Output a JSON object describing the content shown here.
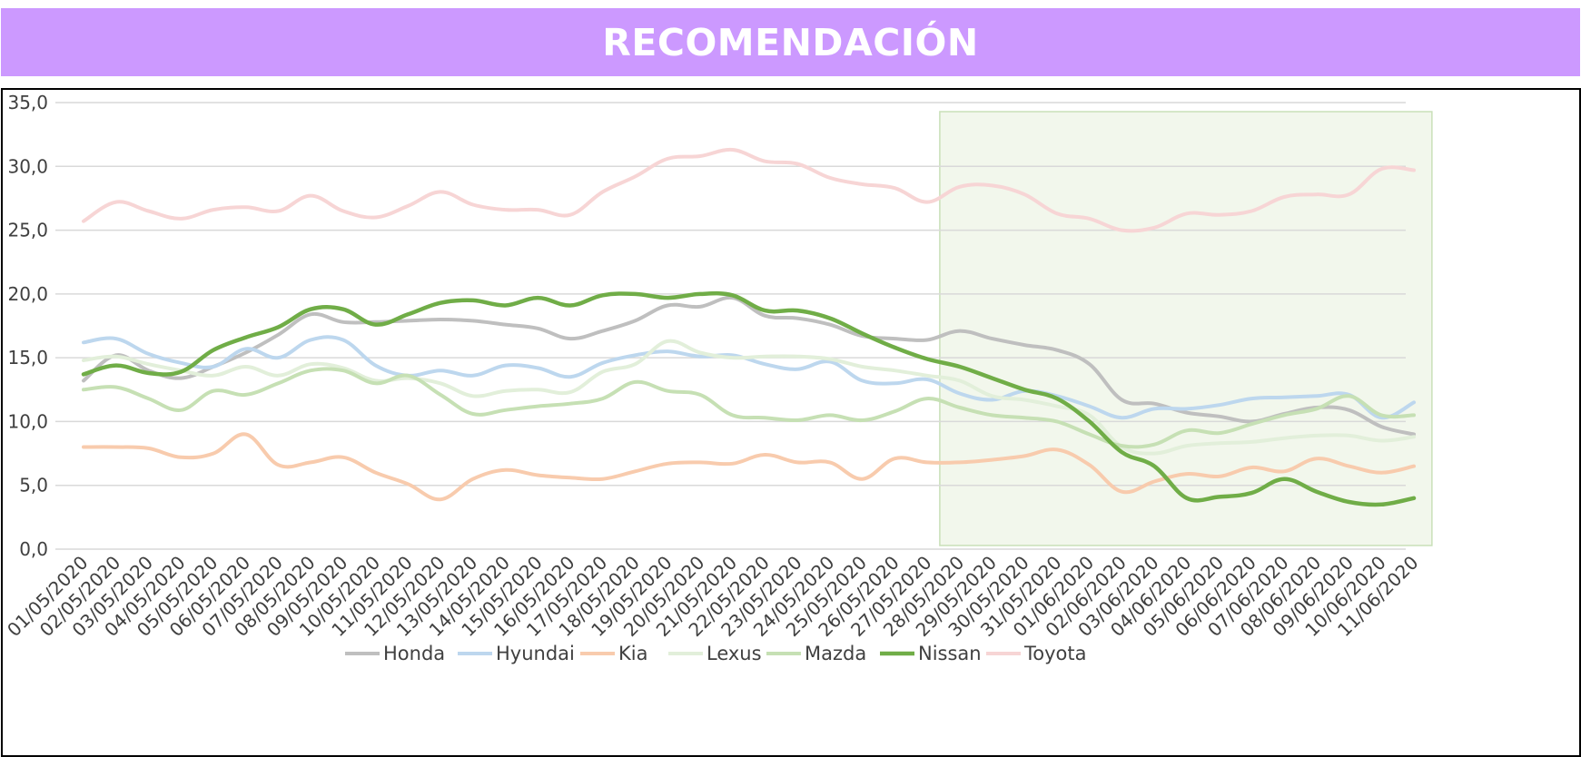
{
  "header": {
    "title": "RECOMENDACIÓN",
    "background_color": "#cc99ff"
  },
  "chart_data": {
    "type": "line",
    "title": "RECOMENDACIÓN",
    "xlabel": "",
    "ylabel": "",
    "ylim": [
      0,
      35
    ],
    "yticks": [
      "0,0",
      "5,0",
      "10,0",
      "15,0",
      "20,0",
      "25,0",
      "30,0",
      "35,0"
    ],
    "grid": true,
    "legend_position": "bottom",
    "highlight": {
      "from": "28/05/2020",
      "to": "11/06/2020",
      "color": "#f2f7ec",
      "border": "#c9e0b8"
    },
    "categories": [
      "01/05/2020",
      "02/05/2020",
      "03/05/2020",
      "04/05/2020",
      "05/05/2020",
      "06/05/2020",
      "07/05/2020",
      "08/05/2020",
      "09/05/2020",
      "10/05/2020",
      "11/05/2020",
      "12/05/2020",
      "13/05/2020",
      "14/05/2020",
      "15/05/2020",
      "16/05/2020",
      "17/05/2020",
      "18/05/2020",
      "19/05/2020",
      "20/05/2020",
      "21/05/2020",
      "22/05/2020",
      "23/05/2020",
      "24/05/2020",
      "25/05/2020",
      "26/05/2020",
      "27/05/2020",
      "28/05/2020",
      "29/05/2020",
      "30/05/2020",
      "31/05/2020",
      "01/06/2020",
      "02/06/2020",
      "03/06/2020",
      "04/06/2020",
      "05/06/2020",
      "06/06/2020",
      "07/06/2020",
      "08/06/2020",
      "09/06/2020",
      "10/06/2020",
      "11/06/2020"
    ],
    "series": [
      {
        "name": "Honda",
        "color": "#bfbfbf",
        "width": 4,
        "values": [
          13.2,
          15.2,
          14.0,
          13.4,
          14.3,
          15.4,
          16.8,
          18.4,
          17.8,
          17.8,
          17.9,
          18.0,
          17.9,
          17.6,
          17.3,
          16.5,
          17.1,
          17.9,
          19.1,
          19.0,
          19.7,
          18.3,
          18.1,
          17.6,
          16.7,
          16.5,
          16.4,
          17.1,
          16.5,
          16.0,
          15.6,
          14.5,
          11.7,
          11.4,
          10.7,
          10.4,
          10.0,
          10.6,
          11.1,
          10.9,
          9.6,
          9.0
        ]
      },
      {
        "name": "Hyundai",
        "color": "#bdd7ee",
        "width": 4,
        "values": [
          16.2,
          16.5,
          15.3,
          14.6,
          14.3,
          15.7,
          15.0,
          16.4,
          16.4,
          14.4,
          13.6,
          14.0,
          13.6,
          14.4,
          14.2,
          13.5,
          14.6,
          15.2,
          15.5,
          15.1,
          15.2,
          14.5,
          14.1,
          14.7,
          13.2,
          13.0,
          13.3,
          12.2,
          11.7,
          12.4,
          12.0,
          11.2,
          10.3,
          11.0,
          11.0,
          11.3,
          11.8,
          11.9,
          12.0,
          12.1,
          10.3,
          11.5
        ]
      },
      {
        "name": "Kia",
        "color": "#f8cbad",
        "width": 4,
        "values": [
          8.0,
          8.0,
          7.9,
          7.2,
          7.5,
          9.0,
          6.6,
          6.8,
          7.2,
          6.0,
          5.1,
          3.9,
          5.5,
          6.2,
          5.8,
          5.6,
          5.5,
          6.1,
          6.7,
          6.8,
          6.7,
          7.4,
          6.8,
          6.8,
          5.5,
          7.1,
          6.8,
          6.8,
          7.0,
          7.3,
          7.8,
          6.6,
          4.5,
          5.3,
          5.9,
          5.7,
          6.4,
          6.1,
          7.1,
          6.5,
          6.0,
          6.5
        ]
      },
      {
        "name": "Lexus",
        "color": "#e2efda",
        "width": 4,
        "values": [
          14.8,
          15.1,
          14.5,
          14.0,
          13.6,
          14.3,
          13.6,
          14.5,
          14.2,
          13.2,
          13.4,
          13.0,
          12.0,
          12.4,
          12.5,
          12.3,
          13.9,
          14.5,
          16.3,
          15.4,
          15.0,
          15.1,
          15.1,
          14.9,
          14.3,
          14.0,
          13.6,
          13.2,
          12.0,
          11.7,
          11.2,
          10.5,
          8.0,
          7.5,
          8.1,
          8.3,
          8.4,
          8.7,
          8.9,
          8.9,
          8.5,
          8.8
        ]
      },
      {
        "name": "Mazda",
        "color": "#c6e0b4",
        "width": 4,
        "values": [
          12.5,
          12.7,
          11.8,
          10.9,
          12.4,
          12.1,
          13.0,
          14.0,
          14.0,
          13.0,
          13.6,
          12.1,
          10.6,
          10.9,
          11.2,
          11.4,
          11.8,
          13.1,
          12.4,
          12.1,
          10.5,
          10.3,
          10.1,
          10.5,
          10.1,
          10.8,
          11.8,
          11.1,
          10.5,
          10.3,
          10.0,
          9.0,
          8.1,
          8.2,
          9.3,
          9.1,
          9.8,
          10.5,
          11.0,
          12.0,
          10.5,
          10.5
        ]
      },
      {
        "name": "Nissan",
        "color": "#70ad47",
        "width": 4.5,
        "values": [
          13.7,
          14.4,
          13.8,
          13.9,
          15.6,
          16.6,
          17.4,
          18.8,
          18.8,
          17.6,
          18.4,
          19.3,
          19.5,
          19.1,
          19.7,
          19.1,
          19.9,
          20.0,
          19.7,
          20.0,
          19.9,
          18.7,
          18.7,
          18.1,
          16.9,
          15.8,
          14.9,
          14.3,
          13.4,
          12.5,
          11.8,
          10.0,
          7.6,
          6.5,
          4.0,
          4.1,
          4.4,
          5.5,
          4.5,
          3.7,
          3.5,
          4.0
        ]
      },
      {
        "name": "Toyota",
        "color": "#f7d5d5",
        "width": 4,
        "values": [
          25.7,
          27.2,
          26.5,
          25.9,
          26.6,
          26.8,
          26.5,
          27.7,
          26.5,
          26.0,
          26.9,
          28.0,
          27.0,
          26.6,
          26.6,
          26.2,
          28.0,
          29.2,
          30.6,
          30.8,
          31.3,
          30.4,
          30.2,
          29.1,
          28.6,
          28.3,
          27.2,
          28.4,
          28.5,
          27.8,
          26.3,
          25.9,
          25.0,
          25.2,
          26.3,
          26.2,
          26.5,
          27.6,
          27.8,
          27.8,
          29.8,
          29.7
        ]
      }
    ]
  }
}
